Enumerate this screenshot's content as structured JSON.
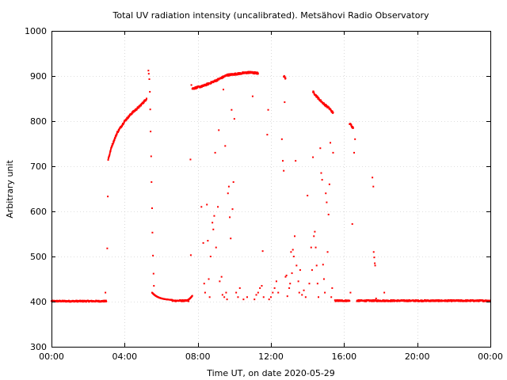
{
  "chart_data": {
    "type": "scatter",
    "title": "Total UV radiation intensity (uncalibrated). Metsähovi Radio Observatory",
    "xlabel": "Time UT, on date 2020-05-29",
    "ylabel": "Arbitrary unit",
    "xlim": [
      0,
      24
    ],
    "ylim": [
      300,
      1000
    ],
    "x_tick_values": [
      0,
      4,
      8,
      12,
      16,
      20,
      24
    ],
    "x_tick_labels": [
      "00:00",
      "04:00",
      "08:00",
      "12:00",
      "16:00",
      "20:00",
      "00:00"
    ],
    "y_tick_values": [
      300,
      400,
      500,
      600,
      700,
      800,
      900,
      1000
    ],
    "y_tick_labels": [
      "300",
      "400",
      "500",
      "600",
      "700",
      "800",
      "900",
      "1000"
    ],
    "grid": true,
    "point_color": "#ff0000",
    "baseline_segments": [
      {
        "x_start": 0.0,
        "x_end": 3.0,
        "y": 401
      },
      {
        "x_start": 6.6,
        "x_end": 7.5,
        "y": 402
      },
      {
        "x_start": 15.5,
        "x_end": 16.3,
        "y": 402
      },
      {
        "x_start": 16.7,
        "x_end": 24.0,
        "y": 402
      }
    ],
    "curve_segments": [
      {
        "x": [
          3.1,
          3.3,
          3.6,
          4.0,
          4.4,
          4.8,
          5.1,
          5.2
        ],
        "y": [
          715,
          745,
          775,
          800,
          818,
          832,
          845,
          850
        ]
      },
      {
        "x": [
          7.7,
          8.3,
          9.0,
          9.6,
          10.2,
          10.8,
          11.3
        ],
        "y": [
          872,
          878,
          890,
          902,
          905,
          908,
          906
        ]
      },
      {
        "x": [
          12.7,
          12.8
        ],
        "y": [
          900,
          895
        ]
      },
      {
        "x": [
          14.3,
          14.6,
          14.9,
          15.2,
          15.4
        ],
        "y": [
          865,
          850,
          838,
          828,
          818
        ]
      },
      {
        "x": [
          16.3,
          16.5
        ],
        "y": [
          795,
          785
        ]
      }
    ],
    "decay_segments": [
      {
        "x_start": 5.5,
        "x_end": 6.6,
        "y_start": 420,
        "y_end": 403
      },
      {
        "x_start": 7.3,
        "x_end": 7.7,
        "y_start": 402,
        "y_end": 413
      }
    ],
    "scatter_points": [
      [
        2.95,
        420
      ],
      [
        3.05,
        518
      ],
      [
        3.08,
        633
      ],
      [
        5.3,
        912
      ],
      [
        5.32,
        905
      ],
      [
        5.35,
        893
      ],
      [
        5.38,
        865
      ],
      [
        5.4,
        826
      ],
      [
        5.42,
        777
      ],
      [
        5.45,
        722
      ],
      [
        5.47,
        665
      ],
      [
        5.5,
        607
      ],
      [
        5.52,
        553
      ],
      [
        5.55,
        502
      ],
      [
        5.58,
        462
      ],
      [
        5.6,
        435
      ],
      [
        7.6,
        715
      ],
      [
        7.62,
        503
      ],
      [
        7.65,
        880
      ],
      [
        8.2,
        610
      ],
      [
        8.3,
        530
      ],
      [
        8.35,
        440
      ],
      [
        8.4,
        420
      ],
      [
        8.5,
        615
      ],
      [
        8.55,
        535
      ],
      [
        8.6,
        450
      ],
      [
        8.65,
        410
      ],
      [
        8.7,
        500
      ],
      [
        8.8,
        575
      ],
      [
        8.85,
        560
      ],
      [
        8.9,
        590
      ],
      [
        8.95,
        730
      ],
      [
        9.0,
        520
      ],
      [
        9.1,
        610
      ],
      [
        9.15,
        780
      ],
      [
        9.2,
        445
      ],
      [
        9.3,
        455
      ],
      [
        9.35,
        415
      ],
      [
        9.4,
        870
      ],
      [
        9.45,
        410
      ],
      [
        9.5,
        745
      ],
      [
        9.55,
        420
      ],
      [
        9.6,
        405
      ],
      [
        9.65,
        640
      ],
      [
        9.7,
        655
      ],
      [
        9.75,
        587
      ],
      [
        9.8,
        540
      ],
      [
        9.85,
        825
      ],
      [
        9.9,
        605
      ],
      [
        9.95,
        665
      ],
      [
        10.0,
        805
      ],
      [
        10.1,
        420
      ],
      [
        10.2,
        410
      ],
      [
        10.3,
        430
      ],
      [
        10.5,
        405
      ],
      [
        10.7,
        410
      ],
      [
        11.0,
        855
      ],
      [
        11.1,
        405
      ],
      [
        11.2,
        415
      ],
      [
        11.3,
        420
      ],
      [
        11.4,
        430
      ],
      [
        11.5,
        435
      ],
      [
        11.55,
        512
      ],
      [
        11.6,
        410
      ],
      [
        11.8,
        770
      ],
      [
        11.85,
        825
      ],
      [
        11.9,
        405
      ],
      [
        12.0,
        410
      ],
      [
        12.1,
        420
      ],
      [
        12.2,
        430
      ],
      [
        12.3,
        445
      ],
      [
        12.4,
        420
      ],
      [
        12.6,
        760
      ],
      [
        12.65,
        712
      ],
      [
        12.7,
        690
      ],
      [
        12.75,
        842
      ],
      [
        12.8,
        455
      ],
      [
        12.85,
        458
      ],
      [
        12.9,
        412
      ],
      [
        13.0,
        430
      ],
      [
        13.05,
        440
      ],
      [
        13.1,
        510
      ],
      [
        13.15,
        463
      ],
      [
        13.2,
        515
      ],
      [
        13.25,
        500
      ],
      [
        13.3,
        545
      ],
      [
        13.35,
        712
      ],
      [
        13.4,
        480
      ],
      [
        13.5,
        445
      ],
      [
        13.55,
        420
      ],
      [
        13.6,
        470
      ],
      [
        13.7,
        415
      ],
      [
        13.8,
        425
      ],
      [
        13.9,
        410
      ],
      [
        14.0,
        635
      ],
      [
        14.1,
        440
      ],
      [
        14.2,
        520
      ],
      [
        14.25,
        470
      ],
      [
        14.3,
        720
      ],
      [
        14.35,
        545
      ],
      [
        14.4,
        555
      ],
      [
        14.45,
        520
      ],
      [
        14.5,
        480
      ],
      [
        14.55,
        440
      ],
      [
        14.6,
        410
      ],
      [
        14.7,
        740
      ],
      [
        14.75,
        685
      ],
      [
        14.8,
        670
      ],
      [
        14.85,
        482
      ],
      [
        14.9,
        450
      ],
      [
        14.95,
        420
      ],
      [
        15.0,
        640
      ],
      [
        15.05,
        620
      ],
      [
        15.1,
        510
      ],
      [
        15.15,
        593
      ],
      [
        15.2,
        660
      ],
      [
        15.25,
        752
      ],
      [
        15.3,
        410
      ],
      [
        15.35,
        430
      ],
      [
        15.4,
        730
      ],
      [
        16.35,
        420
      ],
      [
        16.45,
        572
      ],
      [
        16.55,
        730
      ],
      [
        16.6,
        760
      ],
      [
        17.55,
        675
      ],
      [
        17.6,
        655
      ],
      [
        17.62,
        510
      ],
      [
        17.65,
        498
      ],
      [
        17.68,
        485
      ],
      [
        17.7,
        480
      ],
      [
        17.75,
        407
      ],
      [
        18.2,
        420
      ]
    ]
  }
}
